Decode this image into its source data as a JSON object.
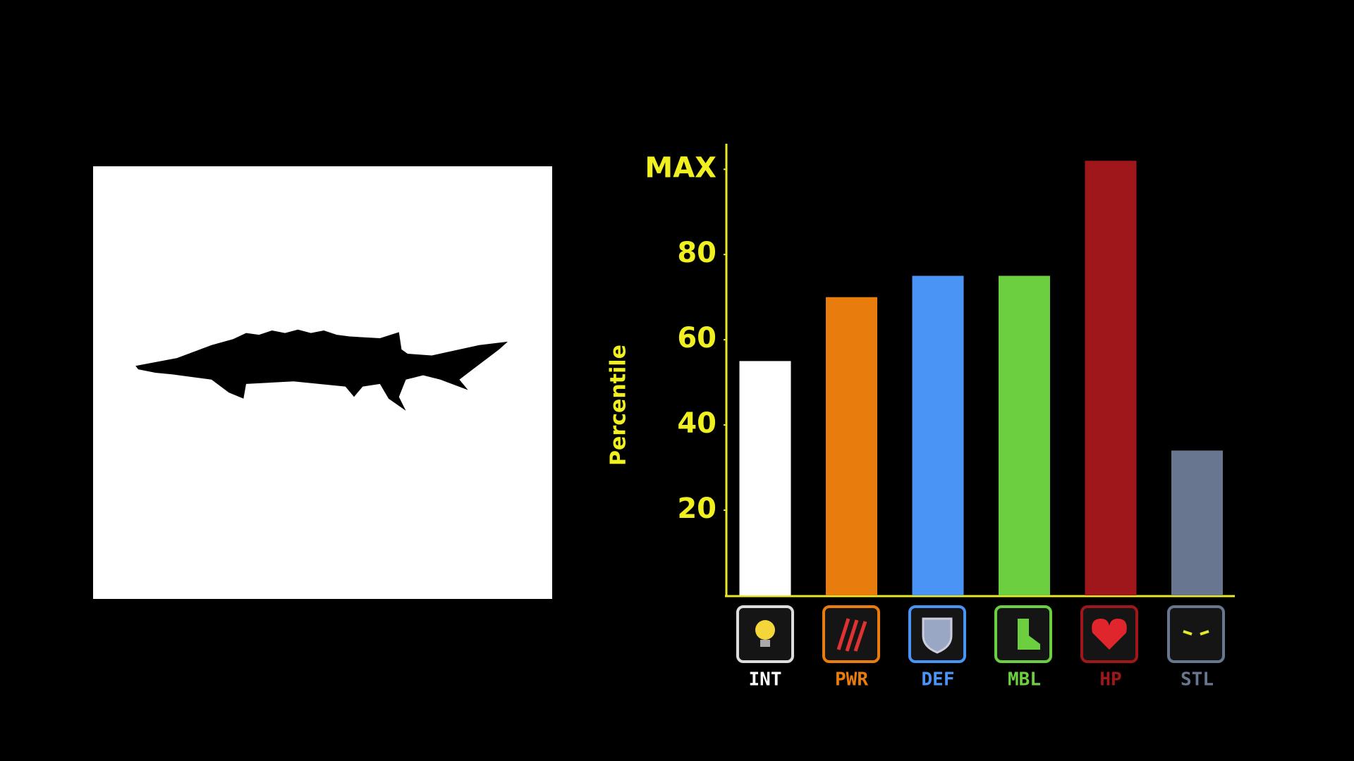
{
  "chart_data": {
    "type": "bar",
    "ylabel": "Percentile",
    "categories": [
      "INT",
      "PWR",
      "DEF",
      "MBL",
      "HP",
      "STL"
    ],
    "values": [
      55,
      70,
      75,
      75,
      102,
      34
    ],
    "colors": [
      "#ffffff",
      "#e87d0d",
      "#4a94f5",
      "#6ccf3f",
      "#a0171b",
      "#68768f"
    ],
    "ylim": [
      0,
      106
    ],
    "yticks": [
      20,
      40,
      60,
      80,
      {
        "value": 100,
        "label": "MAX"
      }
    ]
  }
}
